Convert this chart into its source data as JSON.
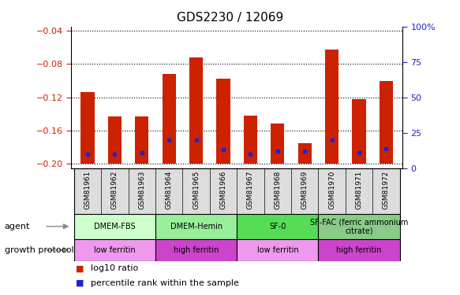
{
  "title": "GDS2230 / 12069",
  "samples": [
    "GSM81961",
    "GSM81962",
    "GSM81963",
    "GSM81964",
    "GSM81965",
    "GSM81966",
    "GSM81967",
    "GSM81968",
    "GSM81969",
    "GSM81970",
    "GSM81971",
    "GSM81972"
  ],
  "log10_ratio": [
    -0.114,
    -0.143,
    -0.143,
    -0.092,
    -0.072,
    -0.098,
    -0.142,
    -0.151,
    -0.175,
    -0.063,
    -0.122,
    -0.1
  ],
  "percentile_rank": [
    10,
    10,
    11,
    20,
    20,
    13,
    10,
    12,
    12,
    20,
    11,
    14
  ],
  "ylim_left": [
    -0.205,
    -0.035
  ],
  "ylim_right": [
    0,
    100
  ],
  "yticks_left": [
    -0.2,
    -0.16,
    -0.12,
    -0.08,
    -0.04
  ],
  "yticks_right": [
    0,
    25,
    50,
    75,
    100
  ],
  "bar_color": "#cc2200",
  "dot_color": "#2222cc",
  "agent_groups": [
    {
      "label": "DMEM-FBS",
      "start": 0,
      "end": 3,
      "color": "#ccffcc"
    },
    {
      "label": "DMEM-Hemin",
      "start": 3,
      "end": 6,
      "color": "#99ee99"
    },
    {
      "label": "SF-0",
      "start": 6,
      "end": 9,
      "color": "#55dd55"
    },
    {
      "label": "SF-FAC (ferric ammonium\ncitrate)",
      "start": 9,
      "end": 12,
      "color": "#88cc88"
    }
  ],
  "protocol_groups": [
    {
      "label": "low ferritin",
      "start": 0,
      "end": 3,
      "color": "#ee99ee"
    },
    {
      "label": "high ferritin",
      "start": 3,
      "end": 6,
      "color": "#cc44cc"
    },
    {
      "label": "low ferritin",
      "start": 6,
      "end": 9,
      "color": "#ee99ee"
    },
    {
      "label": "high ferritin",
      "start": 9,
      "end": 12,
      "color": "#cc44cc"
    }
  ],
  "legend_red": "log10 ratio",
  "legend_blue": "percentile rank within the sample",
  "label_agent": "agent",
  "label_protocol": "growth protocol"
}
